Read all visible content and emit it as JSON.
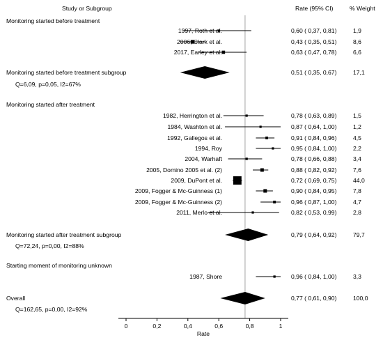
{
  "header": {
    "study": "Study or Subgroup",
    "ci": "Rate (95% CI)",
    "weight": "% Weight"
  },
  "colors": {
    "line": "#000000",
    "reference_line": "#8a8a8a",
    "background": "#ffffff"
  },
  "chart_data": {
    "type": "forest",
    "xlabel": "Rate",
    "xlim": [
      0,
      1.05
    ],
    "xticks": [
      "0",
      "0,2",
      "0,4",
      "0,6",
      "0,8",
      "1"
    ],
    "xtick_values": [
      0,
      0.2,
      0.4,
      0.6,
      0.8,
      1.0
    ],
    "reference_line": 0.77,
    "groups": [
      {
        "header": "Monitoring started before treatment",
        "studies": [
          {
            "label": "1997, Roth et al.",
            "rate": 0.6,
            "lo": 0.37,
            "hi": 0.81,
            "ci_text": "0,60  ( 0,37, 0,81)",
            "weight": "1,9",
            "weight_value": 1.9
          },
          {
            "label": "2006, Clark et al.",
            "rate": 0.43,
            "lo": 0.35,
            "hi": 0.51,
            "ci_text": "0,43  ( 0,35, 0,51)",
            "weight": "8,6",
            "weight_value": 8.6
          },
          {
            "label": "2017, Earley et al.",
            "rate": 0.63,
            "lo": 0.47,
            "hi": 0.78,
            "ci_text": "0,63  ( 0,47, 0,78)",
            "weight": "6,6",
            "weight_value": 6.6
          }
        ],
        "subtotal": {
          "label": "Monitoring started before treatment subgroup",
          "rate": 0.51,
          "lo": 0.35,
          "hi": 0.67,
          "ci_text": "0,51  ( 0,35, 0,67)",
          "weight": "17,1"
        },
        "heterogeneity": "Q=6,09, p=0,05, I2=67%"
      },
      {
        "header": "Monitoring started after treatment",
        "studies": [
          {
            "label": "1982, Herrington et al.",
            "rate": 0.78,
            "lo": 0.63,
            "hi": 0.89,
            "ci_text": "0,78  ( 0,63, 0,89)",
            "weight": "1,5",
            "weight_value": 1.5
          },
          {
            "label": "1984, Washton et al.",
            "rate": 0.87,
            "lo": 0.64,
            "hi": 1.0,
            "ci_text": "0,87  ( 0,64, 1,00)",
            "weight": "1,2",
            "weight_value": 1.2
          },
          {
            "label": "1992, Gallegos et al.",
            "rate": 0.91,
            "lo": 0.84,
            "hi": 0.96,
            "ci_text": "0,91  ( 0,84, 0,96)",
            "weight": "4,5",
            "weight_value": 4.5
          },
          {
            "label": "1994, Roy",
            "rate": 0.95,
            "lo": 0.84,
            "hi": 1.0,
            "ci_text": "0,95  ( 0,84, 1,00)",
            "weight": "2,2",
            "weight_value": 2.2
          },
          {
            "label": "2004, Warhaft",
            "rate": 0.78,
            "lo": 0.66,
            "hi": 0.88,
            "ci_text": "0,78  ( 0,66, 0,88)",
            "weight": "3,4",
            "weight_value": 3.4
          },
          {
            "label": "2005, Domino 2005 et al. (2)",
            "rate": 0.88,
            "lo": 0.82,
            "hi": 0.92,
            "ci_text": "0,88  ( 0,82, 0,92)",
            "weight": "7,6",
            "weight_value": 7.6
          },
          {
            "label": "2009, DuPont et al.",
            "rate": 0.72,
            "lo": 0.69,
            "hi": 0.75,
            "ci_text": "0,72  ( 0,69, 0,75)",
            "weight": "44,0",
            "weight_value": 44.0
          },
          {
            "label": "2009, Fogger & Mc-Guinness (1)",
            "rate": 0.9,
            "lo": 0.84,
            "hi": 0.95,
            "ci_text": "0,90  ( 0,84, 0,95)",
            "weight": "7,8",
            "weight_value": 7.8
          },
          {
            "label": "2009, Fogger & Mc-Guinness (2)",
            "rate": 0.96,
            "lo": 0.87,
            "hi": 1.0,
            "ci_text": "0,96  ( 0,87, 1,00)",
            "weight": "4,7",
            "weight_value": 4.7
          },
          {
            "label": "2011, Merlo et al.",
            "rate": 0.82,
            "lo": 0.53,
            "hi": 0.99,
            "ci_text": "0,82  ( 0,53, 0,99)",
            "weight": "2,8",
            "weight_value": 2.8
          }
        ],
        "subtotal": {
          "label": "Monitoring started after treatment subgroup",
          "rate": 0.79,
          "lo": 0.64,
          "hi": 0.92,
          "ci_text": "0,79  ( 0,64, 0,92)",
          "weight": "79,7"
        },
        "heterogeneity": "Q=72,24, p=0,00, I2=88%"
      },
      {
        "header": "Starting moment of monitoring unknown",
        "studies": [
          {
            "label": "1987, Shore",
            "rate": 0.96,
            "lo": 0.84,
            "hi": 1.0,
            "ci_text": "0,96  ( 0,84, 1,00)",
            "weight": "3,3",
            "weight_value": 3.3
          }
        ],
        "subtotal": null,
        "heterogeneity": null
      }
    ],
    "overall": {
      "label": "Overall",
      "rate": 0.77,
      "lo": 0.61,
      "hi": 0.9,
      "ci_text": "0,77  ( 0,61, 0,90)",
      "weight": "100,0"
    },
    "overall_heterogeneity": "Q=162,65, p=0,00, I2=92%"
  }
}
